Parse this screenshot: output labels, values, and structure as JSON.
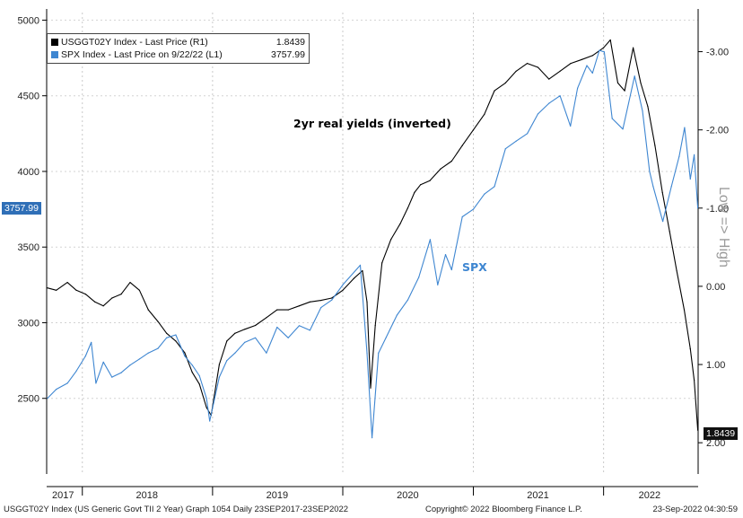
{
  "chart_data": {
    "type": "line",
    "title": "",
    "x_tick_labels": [
      "2017",
      "2018",
      "2019",
      "2020",
      "2021",
      "2022"
    ],
    "left_axis": {
      "ticks": [
        2500,
        3000,
        3500,
        4000,
        4500,
        5000
      ],
      "ylim": [
        2000,
        5050
      ]
    },
    "right_axis": {
      "ticks": [
        "-3.00",
        "-2.00",
        "-1.00",
        "0.00",
        "1.00",
        "2.00"
      ],
      "ylim": [
        -3.5,
        2.4
      ],
      "inverted": true,
      "label": "Low => High"
    },
    "grid": true,
    "legend": {
      "position": "top-left",
      "entries": [
        {
          "label": "USGGT02Y Index - Last Price (R1)",
          "value": "1.8439",
          "color": "#000000"
        },
        {
          "label": "SPX Index - Last Price on 9/22/22 (L1)",
          "value": "3757.99",
          "color": "#3e86d1"
        }
      ]
    },
    "annotations": {
      "yields": "2yr real yields (inverted)",
      "spx": "SPX"
    },
    "last_value_tags": {
      "left": "3757.99",
      "right": "1.8439"
    },
    "series": [
      {
        "name": "USGGT02Y Index - Last Price (R1)",
        "axis": "right",
        "color": "#000000",
        "x": [
          "2017-09-25",
          "2017-10-20",
          "2017-11-20",
          "2017-12-15",
          "2018-01-10",
          "2018-02-05",
          "2018-03-01",
          "2018-03-25",
          "2018-04-20",
          "2018-05-15",
          "2018-06-10",
          "2018-07-05",
          "2018-08-01",
          "2018-08-25",
          "2018-09-20",
          "2018-10-15",
          "2018-11-05",
          "2018-11-25",
          "2018-12-15",
          "2018-12-28",
          "2019-01-20",
          "2019-02-10",
          "2019-03-05",
          "2019-04-01",
          "2019-05-01",
          "2019-06-01",
          "2019-07-01",
          "2019-08-01",
          "2019-09-01",
          "2019-10-01",
          "2019-11-01",
          "2019-12-01",
          "2020-01-01",
          "2020-02-01",
          "2020-02-25",
          "2020-03-09",
          "2020-03-19",
          "2020-04-01",
          "2020-04-20",
          "2020-05-15",
          "2020-06-10",
          "2020-07-01",
          "2020-07-20",
          "2020-08-06",
          "2020-09-01",
          "2020-10-01",
          "2020-11-01",
          "2020-12-01",
          "2021-01-01",
          "2021-02-01",
          "2021-03-01",
          "2021-04-01",
          "2021-05-01",
          "2021-06-01",
          "2021-07-01",
          "2021-08-01",
          "2021-09-01",
          "2021-10-01",
          "2021-11-01",
          "2021-12-01",
          "2022-01-01",
          "2022-01-20",
          "2022-02-10",
          "2022-03-01",
          "2022-03-25",
          "2022-04-15",
          "2022-05-05",
          "2022-05-25",
          "2022-06-15",
          "2022-07-05",
          "2022-07-25",
          "2022-08-15",
          "2022-09-01",
          "2022-09-12",
          "2022-09-22"
        ],
        "values": [
          0.02,
          0.05,
          -0.05,
          0.05,
          0.1,
          0.2,
          0.25,
          0.15,
          0.1,
          -0.05,
          0.05,
          0.3,
          0.45,
          0.6,
          0.7,
          0.85,
          1.1,
          1.25,
          1.55,
          1.65,
          1.0,
          0.7,
          0.6,
          0.55,
          0.5,
          0.4,
          0.3,
          0.3,
          0.25,
          0.2,
          0.18,
          0.15,
          0.05,
          -0.1,
          -0.2,
          0.2,
          1.3,
          0.5,
          -0.3,
          -0.6,
          -0.8,
          -1.0,
          -1.2,
          -1.3,
          -1.35,
          -1.5,
          -1.6,
          -1.8,
          -2.0,
          -2.2,
          -2.5,
          -2.6,
          -2.75,
          -2.85,
          -2.8,
          -2.65,
          -2.75,
          -2.85,
          -2.9,
          -2.95,
          -3.05,
          -3.15,
          -2.6,
          -2.5,
          -3.05,
          -2.6,
          -2.3,
          -1.8,
          -1.2,
          -0.7,
          -0.2,
          0.3,
          0.8,
          1.2,
          1.84
        ]
      },
      {
        "name": "SPX Index - Last Price on 9/22/22 (L1)",
        "axis": "left",
        "color": "#3e86d1",
        "x": [
          "2017-09-25",
          "2017-10-20",
          "2017-11-20",
          "2017-12-15",
          "2018-01-10",
          "2018-01-26",
          "2018-02-08",
          "2018-03-01",
          "2018-03-25",
          "2018-04-20",
          "2018-05-15",
          "2018-06-10",
          "2018-07-05",
          "2018-08-01",
          "2018-08-25",
          "2018-09-20",
          "2018-10-15",
          "2018-11-05",
          "2018-11-25",
          "2018-12-15",
          "2018-12-24",
          "2019-01-20",
          "2019-02-10",
          "2019-03-05",
          "2019-04-01",
          "2019-05-01",
          "2019-06-01",
          "2019-07-01",
          "2019-08-01",
          "2019-09-01",
          "2019-10-01",
          "2019-11-01",
          "2019-12-01",
          "2020-01-01",
          "2020-02-19",
          "2020-03-09",
          "2020-03-23",
          "2020-04-10",
          "2020-05-01",
          "2020-06-01",
          "2020-07-01",
          "2020-08-01",
          "2020-09-02",
          "2020-09-23",
          "2020-10-15",
          "2020-11-01",
          "2020-12-01",
          "2021-01-01",
          "2021-02-01",
          "2021-03-01",
          "2021-04-01",
          "2021-05-01",
          "2021-06-01",
          "2021-07-01",
          "2021-08-01",
          "2021-09-01",
          "2021-09-30",
          "2021-10-20",
          "2021-11-15",
          "2021-12-01",
          "2021-12-20",
          "2022-01-03",
          "2022-01-25",
          "2022-02-24",
          "2022-03-29",
          "2022-04-20",
          "2022-05-10",
          "2022-05-20",
          "2022-06-16",
          "2022-07-10",
          "2022-08-01",
          "2022-08-16",
          "2022-09-01",
          "2022-09-12",
          "2022-09-22"
        ],
        "values": [
          2500,
          2560,
          2600,
          2680,
          2780,
          2870,
          2600,
          2740,
          2640,
          2670,
          2720,
          2760,
          2800,
          2830,
          2900,
          2920,
          2780,
          2720,
          2650,
          2500,
          2350,
          2640,
          2750,
          2800,
          2870,
          2900,
          2800,
          2970,
          2900,
          2980,
          2950,
          3100,
          3150,
          3250,
          3380,
          2800,
          2240,
          2800,
          2900,
          3050,
          3150,
          3300,
          3550,
          3250,
          3450,
          3350,
          3700,
          3750,
          3850,
          3900,
          4150,
          4200,
          4250,
          4380,
          4450,
          4500,
          4300,
          4550,
          4700,
          4650,
          4800,
          4790,
          4350,
          4280,
          4630,
          4400,
          4000,
          3900,
          3670,
          3900,
          4100,
          4290,
          3950,
          4110,
          3758
        ]
      }
    ]
  },
  "footer": {
    "left": "USGGT02Y Index (US Generic Govt TII 2 Year) Graph 1054  Daily 23SEP2017-23SEP2022",
    "center": "Copyright© 2022 Bloomberg Finance L.P.",
    "right": "23-Sep-2022 04:30:59"
  }
}
